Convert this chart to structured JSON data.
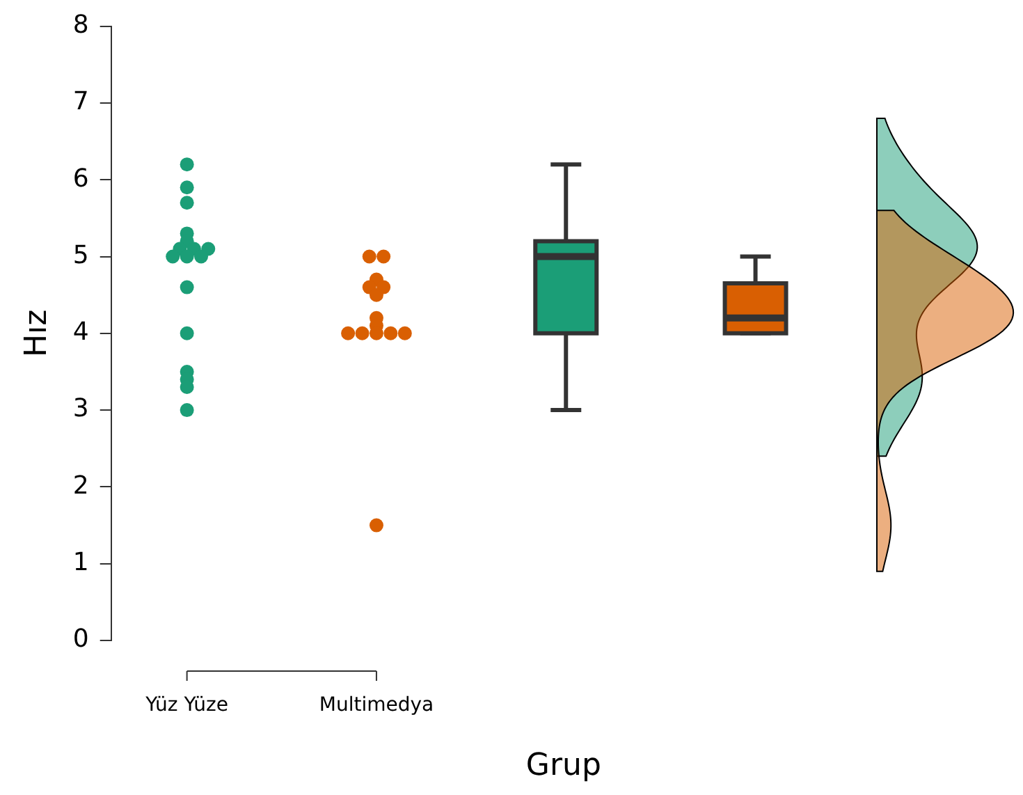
{
  "chart_data": {
    "type": "box",
    "xlabel": "Grup",
    "ylabel": "Hız",
    "categories": [
      "Yüz Yüze",
      "Multimedya",
      null,
      null
    ],
    "ylim": [
      0,
      8
    ],
    "yticks": [
      0,
      1,
      2,
      3,
      4,
      5,
      6,
      7,
      8
    ],
    "grid": false,
    "legend": false,
    "marker": "circle",
    "colors": [
      null,
      null,
      "#1b9e77",
      "#d95f02"
    ],
    "boxes": [
      null,
      null,
      {
        "low": 3,
        "q1": 4,
        "median": 5,
        "q3": 5.2,
        "high": 6.2
      },
      {
        "low": 4,
        "q1": 4,
        "median": 4.2,
        "q3": 4.65,
        "high": 5
      }
    ],
    "series": [
      {
        "type": "scatter",
        "color": "#1b9e77",
        "x": [
          "Yüz Yüze",
          "Yüz Yüze",
          "Yüz Yüze",
          "Yüz Yüze",
          "Yüz Yüze",
          "Yüz Yüze",
          "Yüz Yüze",
          "Yüz Yüze",
          "Yüz Yüze",
          "Yüz Yüze",
          "Yüz Yüze",
          "Yüz Yüze",
          "Yüz Yüze",
          "Yüz Yüze",
          "Yüz Yüze",
          "Yüz Yüze",
          "Yüz Yüze"
        ],
        "values": [
          6.2,
          5.9,
          5.7,
          5.3,
          5.2,
          5.1,
          5.1,
          5.1,
          5.0,
          5.0,
          5.0,
          4.6,
          4.0,
          3.5,
          3.4,
          3.3,
          3.0
        ]
      },
      {
        "type": "scatter",
        "color": "#d95f02",
        "x": [
          "Multimedya",
          "Multimedya",
          "Multimedya",
          "Multimedya",
          "Multimedya",
          "Multimedya",
          "Multimedya",
          "Multimedya",
          "Multimedya",
          "Multimedya",
          "Multimedya",
          "Multimedya",
          "Multimedya",
          "Multimedya"
        ],
        "values": [
          5.0,
          5.0,
          4.7,
          4.6,
          4.6,
          4.5,
          4.2,
          4.1,
          4.0,
          4.0,
          4.0,
          4.0,
          4.0,
          1.5
        ]
      }
    ]
  }
}
